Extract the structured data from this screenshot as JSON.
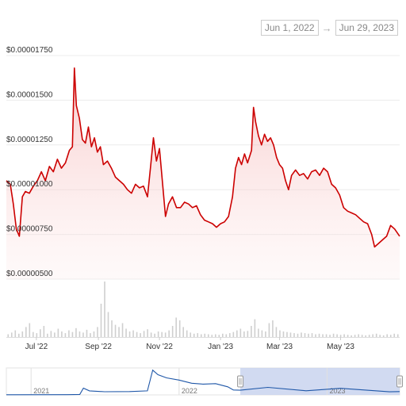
{
  "range": {
    "from": "Jun 1, 2022",
    "arrow": "→",
    "to": "Jun 29, 2023"
  },
  "colors": {
    "line": "#cc0000",
    "volume": "#cfcfcf",
    "navigator_line": "#1f57a8",
    "navigator_selection": "#c9d3ee"
  },
  "chart_data": {
    "type": "line",
    "title": "",
    "xlabel": "",
    "ylabel": "",
    "y_tick_labels": [
      "$0.00001750",
      "$0.00001500",
      "$0.00001250",
      "$0.00001000",
      "$0.00000750",
      "$0.00000500"
    ],
    "ylim": [
      5e-06,
      1.75e-05
    ],
    "x_tick_labels": [
      "Jul '22",
      "Sep '22",
      "Nov '22",
      "Jan '23",
      "Mar '23",
      "May '23"
    ],
    "x_range": [
      "2022-06-01",
      "2023-06-29"
    ],
    "grid": true,
    "series": [
      {
        "points": [
          [
            "2022-06-01",
            1.05e-05
          ],
          [
            "2022-06-05",
            1.03e-05
          ],
          [
            "2022-06-08",
            9.2e-06
          ],
          [
            "2022-06-11",
            7.8e-06
          ],
          [
            "2022-06-14",
            7.4e-06
          ],
          [
            "2022-06-17",
            9.6e-06
          ],
          [
            "2022-06-20",
            9.9e-06
          ],
          [
            "2022-06-24",
            9.8e-06
          ],
          [
            "2022-06-28",
            1.02e-05
          ],
          [
            "2022-07-02",
            1.05e-05
          ],
          [
            "2022-07-06",
            1.1e-05
          ],
          [
            "2022-07-10",
            1.05e-05
          ],
          [
            "2022-07-14",
            1.13e-05
          ],
          [
            "2022-07-18",
            1.1e-05
          ],
          [
            "2022-07-22",
            1.17e-05
          ],
          [
            "2022-07-26",
            1.12e-05
          ],
          [
            "2022-07-30",
            1.15e-05
          ],
          [
            "2022-08-03",
            1.22e-05
          ],
          [
            "2022-08-06",
            1.24e-05
          ],
          [
            "2022-08-08",
            1.68e-05
          ],
          [
            "2022-08-10",
            1.47e-05
          ],
          [
            "2022-08-13",
            1.4e-05
          ],
          [
            "2022-08-16",
            1.28e-05
          ],
          [
            "2022-08-19",
            1.26e-05
          ],
          [
            "2022-08-22",
            1.35e-05
          ],
          [
            "2022-08-25",
            1.24e-05
          ],
          [
            "2022-08-28",
            1.29e-05
          ],
          [
            "2022-08-31",
            1.21e-05
          ],
          [
            "2022-09-03",
            1.24e-05
          ],
          [
            "2022-09-06",
            1.14e-05
          ],
          [
            "2022-09-10",
            1.16e-05
          ],
          [
            "2022-09-14",
            1.12e-05
          ],
          [
            "2022-09-18",
            1.07e-05
          ],
          [
            "2022-09-22",
            1.05e-05
          ],
          [
            "2022-09-26",
            1.03e-05
          ],
          [
            "2022-09-30",
            1e-05
          ],
          [
            "2022-10-04",
            9.8e-06
          ],
          [
            "2022-10-08",
            1.03e-05
          ],
          [
            "2022-10-12",
            1.01e-05
          ],
          [
            "2022-10-16",
            1.02e-05
          ],
          [
            "2022-10-20",
            9.6e-06
          ],
          [
            "2022-10-23",
            1.12e-05
          ],
          [
            "2022-10-26",
            1.29e-05
          ],
          [
            "2022-10-29",
            1.16e-05
          ],
          [
            "2022-11-01",
            1.23e-05
          ],
          [
            "2022-11-04",
            1.04e-05
          ],
          [
            "2022-11-07",
            8.5e-06
          ],
          [
            "2022-11-10",
            9.2e-06
          ],
          [
            "2022-11-14",
            9.6e-06
          ],
          [
            "2022-11-18",
            9e-06
          ],
          [
            "2022-11-22",
            9e-06
          ],
          [
            "2022-11-26",
            9.3e-06
          ],
          [
            "2022-11-30",
            9.2e-06
          ],
          [
            "2022-12-04",
            9e-06
          ],
          [
            "2022-12-08",
            9.1e-06
          ],
          [
            "2022-12-12",
            8.6e-06
          ],
          [
            "2022-12-16",
            8.3e-06
          ],
          [
            "2022-12-20",
            8.2e-06
          ],
          [
            "2022-12-24",
            8.1e-06
          ],
          [
            "2022-12-28",
            7.9e-06
          ],
          [
            "2023-01-01",
            8.1e-06
          ],
          [
            "2023-01-05",
            8.2e-06
          ],
          [
            "2023-01-09",
            8.5e-06
          ],
          [
            "2023-01-13",
            9.6e-06
          ],
          [
            "2023-01-16",
            1.12e-05
          ],
          [
            "2023-01-19",
            1.18e-05
          ],
          [
            "2023-01-22",
            1.14e-05
          ],
          [
            "2023-01-25",
            1.2e-05
          ],
          [
            "2023-01-28",
            1.15e-05
          ],
          [
            "2023-02-01",
            1.22e-05
          ],
          [
            "2023-02-03",
            1.46e-05
          ],
          [
            "2023-02-05",
            1.38e-05
          ],
          [
            "2023-02-08",
            1.3e-05
          ],
          [
            "2023-02-11",
            1.25e-05
          ],
          [
            "2023-02-14",
            1.31e-05
          ],
          [
            "2023-02-17",
            1.27e-05
          ],
          [
            "2023-02-20",
            1.29e-05
          ],
          [
            "2023-02-23",
            1.25e-05
          ],
          [
            "2023-02-26",
            1.18e-05
          ],
          [
            "2023-03-01",
            1.14e-05
          ],
          [
            "2023-03-04",
            1.12e-05
          ],
          [
            "2023-03-07",
            1.05e-05
          ],
          [
            "2023-03-10",
            1e-05
          ],
          [
            "2023-03-13",
            1.08e-05
          ],
          [
            "2023-03-17",
            1.11e-05
          ],
          [
            "2023-03-21",
            1.08e-05
          ],
          [
            "2023-03-25",
            1.09e-05
          ],
          [
            "2023-03-29",
            1.06e-05
          ],
          [
            "2023-04-02",
            1.1e-05
          ],
          [
            "2023-04-06",
            1.11e-05
          ],
          [
            "2023-04-10",
            1.08e-05
          ],
          [
            "2023-04-14",
            1.12e-05
          ],
          [
            "2023-04-18",
            1.1e-05
          ],
          [
            "2023-04-22",
            1.03e-05
          ],
          [
            "2023-04-26",
            1.01e-05
          ],
          [
            "2023-04-30",
            9.7e-06
          ],
          [
            "2023-05-04",
            9e-06
          ],
          [
            "2023-05-08",
            8.8e-06
          ],
          [
            "2023-05-12",
            8.7e-06
          ],
          [
            "2023-05-16",
            8.6e-06
          ],
          [
            "2023-05-20",
            8.4e-06
          ],
          [
            "2023-05-24",
            8.2e-06
          ],
          [
            "2023-05-28",
            8.1e-06
          ],
          [
            "2023-06-01",
            7.5e-06
          ],
          [
            "2023-06-04",
            6.8e-06
          ],
          [
            "2023-06-08",
            7e-06
          ],
          [
            "2023-06-12",
            7.2e-06
          ],
          [
            "2023-06-16",
            7.4e-06
          ],
          [
            "2023-06-20",
            8e-06
          ],
          [
            "2023-06-24",
            7.8e-06
          ],
          [
            "2023-06-29",
            7.4e-06
          ]
        ]
      }
    ],
    "volume": {
      "x_range": [
        "2022-06-01",
        "2023-06-29"
      ],
      "relative_values": [
        0.05,
        0.08,
        0.12,
        0.06,
        0.1,
        0.18,
        0.25,
        0.09,
        0.07,
        0.14,
        0.2,
        0.06,
        0.11,
        0.08,
        0.15,
        0.1,
        0.07,
        0.12,
        0.09,
        0.16,
        0.1,
        0.08,
        0.13,
        0.07,
        0.1,
        0.18,
        0.6,
        1.0,
        0.45,
        0.3,
        0.22,
        0.18,
        0.25,
        0.15,
        0.1,
        0.12,
        0.09,
        0.07,
        0.11,
        0.14,
        0.08,
        0.06,
        0.1,
        0.09,
        0.08,
        0.12,
        0.2,
        0.35,
        0.3,
        0.18,
        0.12,
        0.08,
        0.06,
        0.07,
        0.05,
        0.06,
        0.05,
        0.04,
        0.05,
        0.04,
        0.06,
        0.05,
        0.07,
        0.09,
        0.12,
        0.15,
        0.1,
        0.11,
        0.2,
        0.32,
        0.15,
        0.12,
        0.1,
        0.25,
        0.3,
        0.18,
        0.12,
        0.1,
        0.09,
        0.08,
        0.07,
        0.06,
        0.08,
        0.07,
        0.06,
        0.07,
        0.05,
        0.06,
        0.05,
        0.05,
        0.04,
        0.06,
        0.05,
        0.04,
        0.05,
        0.04,
        0.03,
        0.04,
        0.05,
        0.04,
        0.03,
        0.04,
        0.05,
        0.06,
        0.04,
        0.03,
        0.05,
        0.04,
        0.06,
        0.05
      ]
    },
    "navigator": {
      "year_labels": [
        "2021",
        "2022",
        "2023"
      ],
      "x_range": [
        "2020-11-01",
        "2023-06-29"
      ],
      "selection": [
        "2022-06-01",
        "2023-06-29"
      ],
      "points": [
        [
          "2020-11-01",
          4e-07
        ],
        [
          "2021-04-01",
          6e-07
        ],
        [
          "2021-05-01",
          1e-06
        ],
        [
          "2021-05-10",
          1.5e-05
        ],
        [
          "2021-05-25",
          9e-06
        ],
        [
          "2021-07-01",
          7e-06
        ],
        [
          "2021-09-01",
          7.5e-06
        ],
        [
          "2021-10-15",
          9e-06
        ],
        [
          "2021-10-28",
          5.5e-05
        ],
        [
          "2021-11-10",
          4.5e-05
        ],
        [
          "2021-12-01",
          3.8e-05
        ],
        [
          "2022-01-01",
          3.3e-05
        ],
        [
          "2022-02-01",
          2.6e-05
        ],
        [
          "2022-03-01",
          2.4e-05
        ],
        [
          "2022-04-01",
          2.5e-05
        ],
        [
          "2022-05-01",
          1.8e-05
        ],
        [
          "2022-05-15",
          1.1e-05
        ],
        [
          "2022-06-01",
          1.05e-05
        ],
        [
          "2022-08-08",
          1.68e-05
        ],
        [
          "2022-11-10",
          9.2e-06
        ],
        [
          "2023-02-03",
          1.46e-05
        ],
        [
          "2023-06-04",
          6.8e-06
        ],
        [
          "2023-06-29",
          7.4e-06
        ]
      ]
    }
  }
}
